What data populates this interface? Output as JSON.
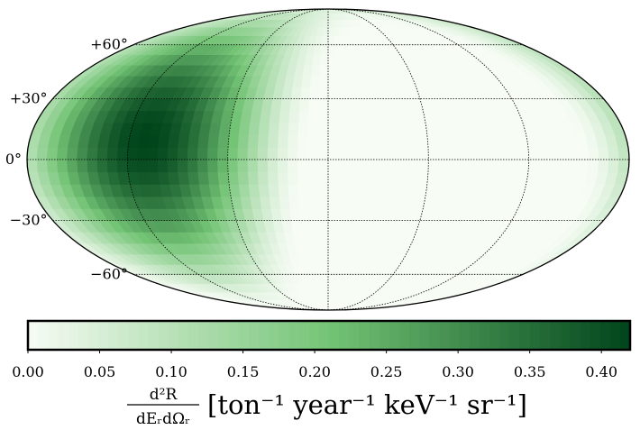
{
  "chart_data": {
    "type": "heatmap",
    "projection": "mollweide",
    "title": "",
    "colormap": "Greens",
    "colors": {
      "low": "#f7fcf5",
      "mid": "#74c476",
      "high": "#00441b",
      "graticule": "#000000"
    },
    "value_range": [
      0.0,
      0.42
    ],
    "hotspot": {
      "longitude_deg": -110,
      "latitude_deg": 10
    },
    "grid": true,
    "meridians_deg": [
      -120,
      -60,
      0,
      60,
      120
    ],
    "parallels": [
      {
        "lat": 60,
        "label": "+60°"
      },
      {
        "lat": 30,
        "label": "+30°"
      },
      {
        "lat": 0,
        "label": "0°"
      },
      {
        "lat": -30,
        "label": "−30°"
      },
      {
        "lat": -60,
        "label": "−60°"
      }
    ],
    "colorbar": {
      "orientation": "horizontal",
      "location": "bottom",
      "ticks": [
        "0.00",
        "0.05",
        "0.10",
        "0.15",
        "0.20",
        "0.25",
        "0.30",
        "0.35",
        "0.40"
      ],
      "tick_values": [
        0.0,
        0.05,
        0.1,
        0.15,
        0.2,
        0.25,
        0.3,
        0.35,
        0.4
      ],
      "label": {
        "numerator": "d²R",
        "denominator": "dEᵣdΩᵣ",
        "units": "[ton⁻¹ year⁻¹ keV⁻¹ sr⁻¹]"
      }
    }
  }
}
